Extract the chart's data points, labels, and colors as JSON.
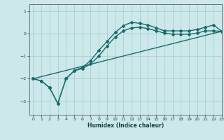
{
  "xlabel": "Humidex (Indice chaleur)",
  "bg_color": "#cce8ea",
  "grid_color": "#aacfd2",
  "line_color": "#1a6b6b",
  "xlim": [
    -0.5,
    23
  ],
  "ylim": [
    -3.6,
    1.3
  ],
  "yticks": [
    1,
    0,
    -1,
    -2,
    -3
  ],
  "xticks": [
    0,
    1,
    2,
    3,
    4,
    5,
    6,
    7,
    8,
    9,
    10,
    11,
    12,
    13,
    14,
    15,
    16,
    17,
    18,
    19,
    20,
    21,
    22,
    23
  ],
  "line1_x": [
    0,
    1,
    2,
    3,
    4,
    5,
    6,
    7,
    8,
    9,
    10,
    11,
    12,
    13,
    14,
    15,
    16,
    17,
    18,
    19,
    20,
    21,
    22,
    23
  ],
  "line1_y": [
    -2.0,
    -2.1,
    -2.4,
    -3.1,
    -2.0,
    -1.65,
    -1.5,
    -1.2,
    -0.75,
    -0.35,
    0.05,
    0.35,
    0.5,
    0.45,
    0.38,
    0.25,
    0.12,
    0.12,
    0.12,
    0.12,
    0.18,
    0.28,
    0.38,
    0.1
  ],
  "line2_x": [
    0,
    1,
    2,
    3,
    4,
    5,
    6,
    7,
    8,
    9,
    10,
    11,
    12,
    13,
    14,
    15,
    16,
    17,
    18,
    19,
    20,
    21,
    22,
    23
  ],
  "line2_y": [
    -2.0,
    -2.1,
    -2.4,
    -3.1,
    -2.0,
    -1.65,
    -1.55,
    -1.35,
    -1.0,
    -0.55,
    -0.15,
    0.12,
    0.25,
    0.28,
    0.22,
    0.12,
    0.02,
    -0.03,
    -0.03,
    -0.03,
    0.02,
    0.12,
    0.12,
    0.1
  ],
  "line3_x": [
    0,
    23
  ],
  "line3_y": [
    -2.0,
    0.1
  ],
  "marker": "D",
  "markersize": 2.0,
  "linewidth": 1.0
}
